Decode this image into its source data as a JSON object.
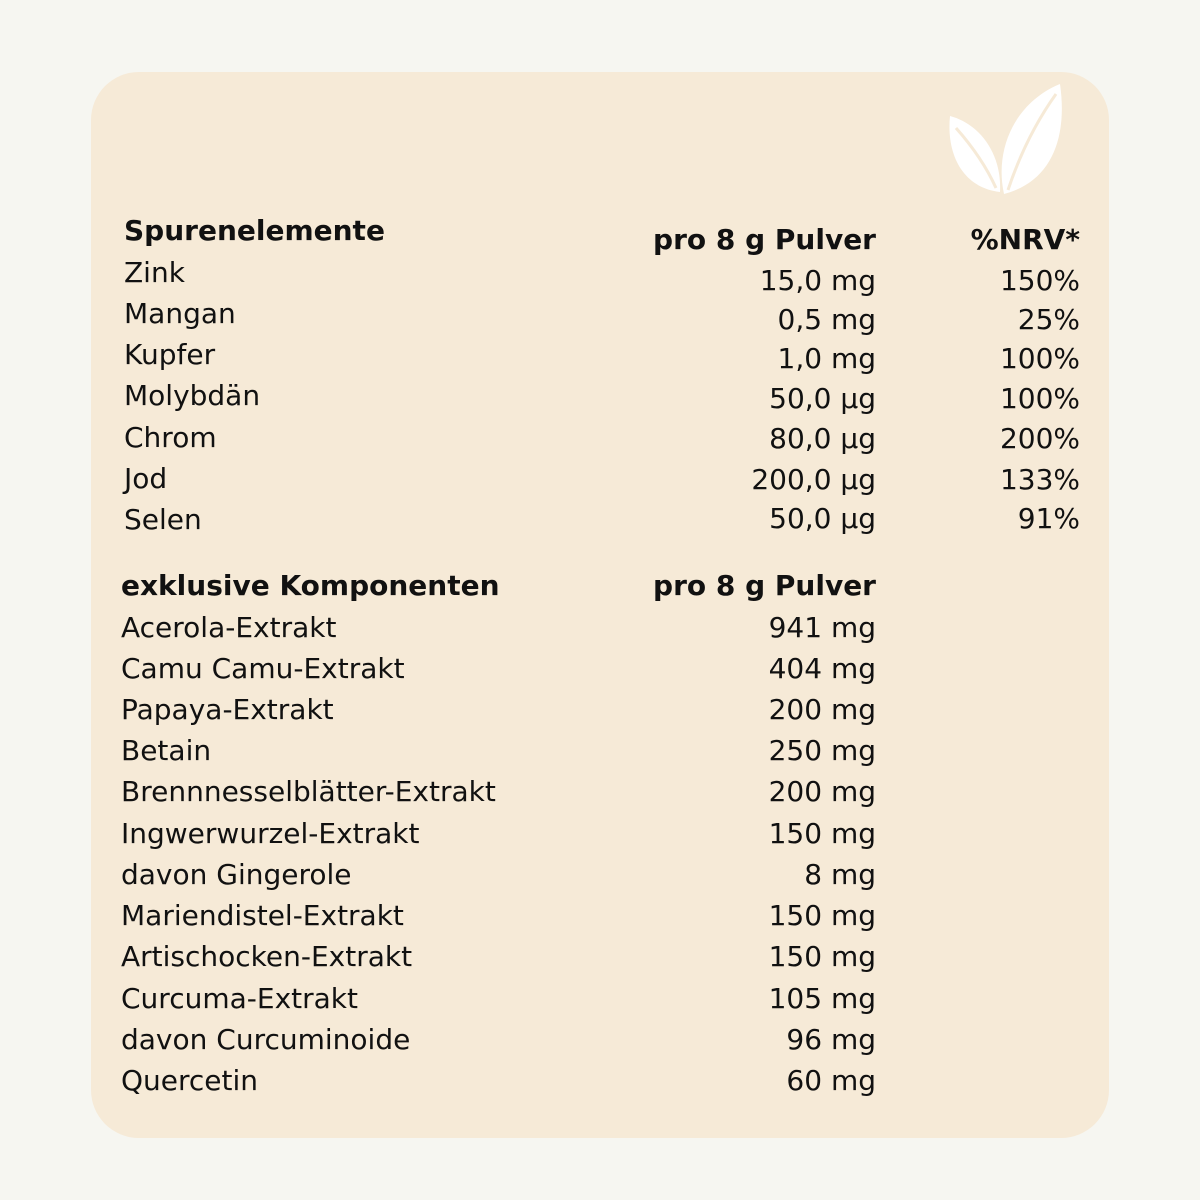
{
  "colors": {
    "page_bg": "#f6f6f1",
    "card_bg": "#f6ead7",
    "text": "#111111",
    "icon": "#ffffff"
  },
  "icon": "leaf-icon",
  "trace": {
    "heading": "Spurenelemente",
    "amount_header": "pro 8 g Pulver",
    "nrv_header": "%NRV*",
    "rows": [
      {
        "name": "Zink",
        "amount": "15,0 mg",
        "nrv": "150%"
      },
      {
        "name": "Mangan",
        "amount": "0,5 mg",
        "nrv": "25%"
      },
      {
        "name": "Kupfer",
        "amount": "1,0 mg",
        "nrv": "100%"
      },
      {
        "name": "Molybdän",
        "amount": "50,0 µg",
        "nrv": "100%"
      },
      {
        "name": "Chrom",
        "amount": "80,0 µg",
        "nrv": "200%"
      },
      {
        "name": "Jod",
        "amount": "200,0 µg",
        "nrv": "133%"
      },
      {
        "name": "Selen",
        "amount": "50,0 µg",
        "nrv": "91%"
      }
    ]
  },
  "exclusive": {
    "heading": "exklusive Komponenten",
    "amount_header": "pro 8 g Pulver",
    "rows": [
      {
        "name": "Acerola-Extrakt",
        "amount": "941 mg"
      },
      {
        "name": "Camu Camu-Extrakt",
        "amount": "404 mg"
      },
      {
        "name": "Papaya-Extrakt",
        "amount": "200 mg"
      },
      {
        "name": "Betain",
        "amount": "250 mg"
      },
      {
        "name": "Brennnesselblätter-Extrakt",
        "amount": "200 mg"
      },
      {
        "name": "Ingwerwurzel-Extrakt",
        "amount": "150 mg"
      },
      {
        "name": "davon Gingerole",
        "amount": "8 mg"
      },
      {
        "name": "Mariendistel-Extrakt",
        "amount": "150 mg"
      },
      {
        "name": "Artischocken-Extrakt",
        "amount": "150 mg"
      },
      {
        "name": "Curcuma-Extrakt",
        "amount": "105 mg"
      },
      {
        "name": "davon Curcuminoide",
        "amount": "96 mg"
      },
      {
        "name": "Quercetin",
        "amount": "60 mg"
      }
    ]
  }
}
